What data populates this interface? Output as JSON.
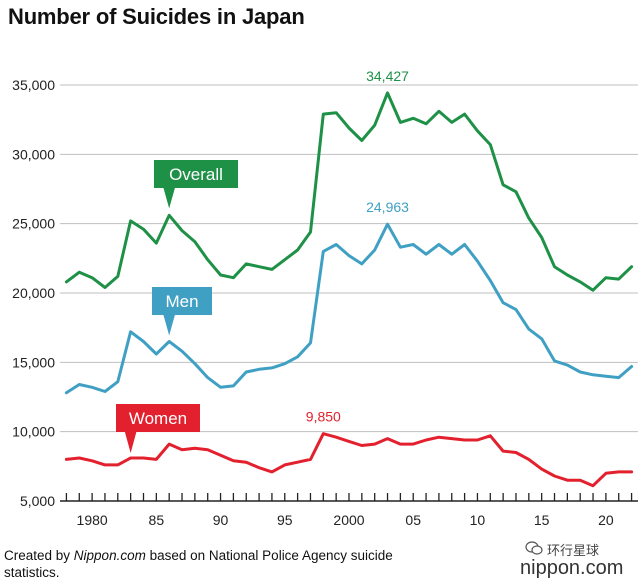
{
  "page": {
    "title": "Number of Suicides in Japan"
  },
  "footer": {
    "prefix": "Created by ",
    "source": "Nippon.com",
    "suffix": " based on National Police Agency suicide statistics."
  },
  "watermark": {
    "chinese": "环行星球",
    "logo": "nippon.com",
    "icon": "wechat-icon"
  },
  "colors": {
    "overall": "#1e9147",
    "men": "#3fa0c4",
    "women": "#e3202d",
    "grid": "#bfbfbf"
  },
  "chart_data": {
    "type": "line",
    "title": "Number of Suicides in Japan",
    "ylim": [
      5000,
      35000
    ],
    "y_ticks": [
      5000,
      10000,
      15000,
      20000,
      25000,
      30000,
      35000
    ],
    "y_tick_labels": [
      "5,000",
      "10,000",
      "15,000",
      "20,000",
      "25,000",
      "30,000",
      "35,000"
    ],
    "xlim": [
      1977.5,
      2022.5
    ],
    "x_ticks": [
      1980,
      1985,
      1990,
      1995,
      2000,
      2005,
      2010,
      2015,
      2020
    ],
    "x_tick_labels": [
      "1980",
      "85",
      "90",
      "95",
      "2000",
      "05",
      "10",
      "15",
      "20"
    ],
    "grid": "horizontal",
    "x": [
      1978,
      1979,
      1980,
      1981,
      1982,
      1983,
      1984,
      1985,
      1986,
      1987,
      1988,
      1989,
      1990,
      1991,
      1992,
      1993,
      1994,
      1995,
      1996,
      1997,
      1998,
      1999,
      2000,
      2001,
      2002,
      2003,
      2004,
      2005,
      2006,
      2007,
      2008,
      2009,
      2010,
      2011,
      2012,
      2013,
      2014,
      2015,
      2016,
      2017,
      2018,
      2019,
      2020,
      2021,
      2022
    ],
    "series": [
      {
        "name": "Overall",
        "key": "overall",
        "values": [
          20800,
          21500,
          21100,
          20400,
          21200,
          25200,
          24600,
          23600,
          25600,
          24500,
          23700,
          22400,
          21300,
          21100,
          22100,
          21900,
          21700,
          22400,
          23100,
          24400,
          32900,
          33000,
          31900,
          31000,
          32100,
          34427,
          32300,
          32600,
          32200,
          33100,
          32300,
          32900,
          31700,
          30700,
          27800,
          27300,
          25400,
          24000,
          21900,
          21300,
          20800,
          20200,
          21100,
          21000,
          21900
        ]
      },
      {
        "name": "Men",
        "key": "men",
        "values": [
          12800,
          13400,
          13200,
          12900,
          13600,
          17200,
          16500,
          15600,
          16500,
          15800,
          14900,
          13900,
          13200,
          13300,
          14300,
          14500,
          14600,
          14900,
          15400,
          16400,
          23000,
          23500,
          22700,
          22100,
          23100,
          24963,
          23300,
          23500,
          22800,
          23500,
          22800,
          23500,
          22300,
          20900,
          19300,
          18800,
          17400,
          16700,
          15100,
          14800,
          14300,
          14100,
          14000,
          13900,
          14700
        ]
      },
      {
        "name": "Women",
        "key": "women",
        "values": [
          8000,
          8100,
          7900,
          7600,
          7600,
          8100,
          8100,
          8000,
          9100,
          8700,
          8800,
          8700,
          8300,
          7900,
          7800,
          7400,
          7100,
          7600,
          7800,
          8000,
          9850,
          9600,
          9300,
          9000,
          9100,
          9500,
          9100,
          9100,
          9400,
          9600,
          9500,
          9400,
          9400,
          9700,
          8600,
          8500,
          8000,
          7300,
          6800,
          6500,
          6500,
          6100,
          7000,
          7100,
          7100
        ]
      }
    ],
    "annotations": [
      {
        "series": "overall",
        "year": 2003,
        "label": "34,427"
      },
      {
        "series": "men",
        "year": 2003,
        "label": "24,963"
      },
      {
        "series": "women",
        "year": 1998,
        "label": "9,850"
      }
    ],
    "callouts": [
      {
        "series": "overall",
        "label": "Overall"
      },
      {
        "series": "men",
        "label": "Men"
      },
      {
        "series": "women",
        "label": "Women"
      }
    ]
  }
}
